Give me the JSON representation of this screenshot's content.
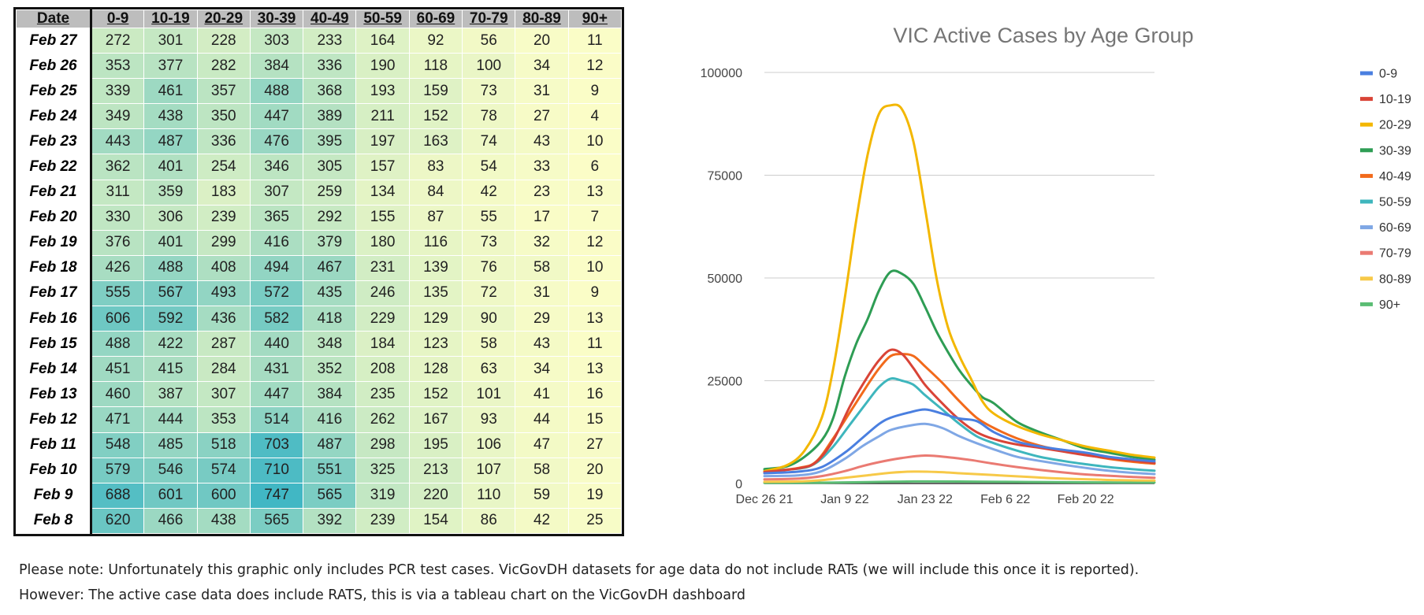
{
  "table": {
    "date_header": "Date",
    "columns": [
      "0-9",
      "10-19",
      "20-29",
      "30-39",
      "40-49",
      "50-59",
      "60-69",
      "70-79",
      "80-89",
      "90+"
    ],
    "rows": [
      {
        "date": "Feb 27",
        "values": [
          272,
          301,
          228,
          303,
          233,
          164,
          92,
          56,
          20,
          11
        ]
      },
      {
        "date": "Feb 26",
        "values": [
          353,
          377,
          282,
          384,
          336,
          190,
          118,
          100,
          34,
          12
        ]
      },
      {
        "date": "Feb 25",
        "values": [
          339,
          461,
          357,
          488,
          368,
          193,
          159,
          73,
          31,
          9
        ]
      },
      {
        "date": "Feb 24",
        "values": [
          349,
          438,
          350,
          447,
          389,
          211,
          152,
          78,
          27,
          4
        ]
      },
      {
        "date": "Feb 23",
        "values": [
          443,
          487,
          336,
          476,
          395,
          197,
          163,
          74,
          43,
          10
        ]
      },
      {
        "date": "Feb 22",
        "values": [
          362,
          401,
          254,
          346,
          305,
          157,
          83,
          54,
          33,
          6
        ]
      },
      {
        "date": "Feb 21",
        "values": [
          311,
          359,
          183,
          307,
          259,
          134,
          84,
          42,
          23,
          13
        ]
      },
      {
        "date": "Feb 20",
        "values": [
          330,
          306,
          239,
          365,
          292,
          155,
          87,
          55,
          17,
          7
        ]
      },
      {
        "date": "Feb 19",
        "values": [
          376,
          401,
          299,
          416,
          379,
          180,
          116,
          73,
          32,
          12
        ]
      },
      {
        "date": "Feb 18",
        "values": [
          426,
          488,
          408,
          494,
          467,
          231,
          139,
          76,
          58,
          10
        ]
      },
      {
        "date": "Feb 17",
        "values": [
          555,
          567,
          493,
          572,
          435,
          246,
          135,
          72,
          31,
          9
        ]
      },
      {
        "date": "Feb 16",
        "values": [
          606,
          592,
          436,
          582,
          418,
          229,
          129,
          90,
          29,
          13
        ]
      },
      {
        "date": "Feb 15",
        "values": [
          488,
          422,
          287,
          440,
          348,
          184,
          123,
          58,
          43,
          11
        ]
      },
      {
        "date": "Feb 14",
        "values": [
          451,
          415,
          284,
          431,
          352,
          208,
          128,
          63,
          34,
          13
        ]
      },
      {
        "date": "Feb 13",
        "values": [
          460,
          387,
          307,
          447,
          384,
          235,
          152,
          101,
          41,
          16
        ]
      },
      {
        "date": "Feb 12",
        "values": [
          471,
          444,
          353,
          514,
          416,
          262,
          167,
          93,
          44,
          15
        ]
      },
      {
        "date": "Feb 11",
        "values": [
          548,
          485,
          518,
          703,
          487,
          298,
          195,
          106,
          47,
          27
        ]
      },
      {
        "date": "Feb 10",
        "values": [
          579,
          546,
          574,
          710,
          551,
          325,
          213,
          107,
          58,
          20
        ]
      },
      {
        "date": "Feb 9",
        "values": [
          688,
          601,
          600,
          747,
          565,
          319,
          220,
          110,
          59,
          19
        ]
      },
      {
        "date": "Feb 8",
        "values": [
          620,
          466,
          438,
          565,
          392,
          239,
          154,
          86,
          42,
          25
        ]
      }
    ],
    "scale_colors": {
      "low": "#fbfdc7",
      "mid": "#b8e3c2",
      "high": "#41b7c4"
    }
  },
  "chart_data": {
    "type": "line",
    "title": "VIC Active Cases by Age Group",
    "xlabel": "",
    "ylabel": "",
    "x_tick_labels": [
      "Dec 26 21",
      "Jan 9 22",
      "Jan 23 22",
      "Feb 6 22",
      "Feb 20 22"
    ],
    "x_tick_days": [
      0,
      14,
      28,
      42,
      56
    ],
    "xlim": [
      0,
      68
    ],
    "ylim": [
      0,
      100000
    ],
    "y_ticks": [
      0,
      25000,
      50000,
      75000,
      100000
    ],
    "grid": true,
    "legend_position": "right",
    "series": [
      {
        "name": "0-9",
        "color": "#4a7fe0",
        "x": [
          0,
          6,
          10,
          14,
          17,
          20,
          22,
          25,
          28,
          31,
          34,
          37,
          40,
          44,
          48,
          52,
          56,
          60,
          64,
          68
        ],
        "values": [
          2500,
          2900,
          4000,
          7500,
          11000,
          14500,
          16000,
          17200,
          18000,
          17000,
          15800,
          15200,
          12500,
          10200,
          9000,
          8200,
          7500,
          6500,
          5900,
          5400
        ]
      },
      {
        "name": "10-19",
        "color": "#d94437",
        "x": [
          0,
          6,
          9,
          12,
          15,
          18,
          20,
          22,
          24,
          26,
          28,
          31,
          34,
          37,
          40,
          44,
          48,
          52,
          56,
          60,
          64,
          68
        ],
        "values": [
          2800,
          3700,
          5200,
          10500,
          19000,
          26000,
          30000,
          32500,
          31500,
          28000,
          24000,
          19500,
          15500,
          12500,
          10800,
          9500,
          8700,
          7800,
          6900,
          6200,
          5600,
          5000
        ]
      },
      {
        "name": "20-29",
        "color": "#f3b700",
        "x": [
          0,
          4,
          7,
          10,
          12,
          14,
          16,
          18,
          20,
          22,
          24,
          26,
          28,
          30,
          32,
          34,
          36,
          38,
          40,
          44,
          48,
          52,
          56,
          60,
          64,
          68
        ],
        "values": [
          3000,
          4500,
          8000,
          16000,
          28000,
          45000,
          64000,
          80000,
          90000,
          92000,
          91000,
          83000,
          67000,
          50000,
          38000,
          31000,
          25500,
          20000,
          17000,
          14000,
          12000,
          10500,
          9000,
          8000,
          7000,
          6300
        ]
      },
      {
        "name": "30-39",
        "color": "#2e9d54",
        "x": [
          0,
          4,
          7,
          10,
          12,
          14,
          16,
          18,
          20,
          22,
          24,
          26,
          28,
          30,
          32,
          34,
          36,
          38,
          40,
          44,
          48,
          52,
          56,
          60,
          64,
          68
        ],
        "values": [
          3500,
          4200,
          6500,
          10500,
          16000,
          26000,
          34000,
          40000,
          47000,
          51500,
          51000,
          48500,
          43000,
          37000,
          32000,
          27500,
          24000,
          21000,
          19500,
          15000,
          12500,
          10500,
          8500,
          7500,
          6500,
          5800
        ]
      },
      {
        "name": "40-49",
        "color": "#f26a1b",
        "x": [
          0,
          6,
          9,
          12,
          15,
          18,
          20,
          22,
          24,
          26,
          28,
          31,
          34,
          37,
          40,
          44,
          48,
          52,
          56,
          60,
          64,
          68
        ],
        "values": [
          2800,
          3800,
          5300,
          11000,
          17500,
          24000,
          28000,
          31000,
          31500,
          31000,
          28500,
          24500,
          20000,
          16000,
          13500,
          11000,
          9200,
          8000,
          7000,
          6000,
          5300,
          4800
        ]
      },
      {
        "name": "50-59",
        "color": "#3eb6bd",
        "x": [
          0,
          6,
          9,
          12,
          15,
          18,
          20,
          22,
          24,
          26,
          28,
          31,
          34,
          37,
          40,
          44,
          48,
          52,
          56,
          60,
          64,
          68
        ],
        "values": [
          3200,
          3600,
          5000,
          9000,
          14500,
          20000,
          23500,
          25500,
          25000,
          24000,
          21500,
          18000,
          14500,
          11500,
          9800,
          8000,
          6500,
          5500,
          4700,
          4000,
          3500,
          3100
        ]
      },
      {
        "name": "60-69",
        "color": "#7fa7e5",
        "x": [
          0,
          6,
          10,
          14,
          17,
          20,
          22,
          25,
          28,
          31,
          34,
          37,
          40,
          44,
          48,
          52,
          56,
          60,
          64,
          68
        ],
        "values": [
          1800,
          2000,
          3000,
          6000,
          9000,
          11500,
          13000,
          14000,
          14500,
          13500,
          11500,
          9800,
          8300,
          6500,
          5500,
          4600,
          3800,
          3100,
          2600,
          2300
        ]
      },
      {
        "name": "70-79",
        "color": "#ea7a72",
        "x": [
          0,
          6,
          10,
          14,
          17,
          20,
          24,
          28,
          32,
          36,
          40,
          44,
          48,
          52,
          56,
          60,
          64,
          68
        ],
        "values": [
          1000,
          1200,
          1800,
          3000,
          4200,
          5200,
          6200,
          6800,
          6400,
          5700,
          4800,
          4000,
          3300,
          2700,
          2200,
          1900,
          1600,
          1400
        ]
      },
      {
        "name": "80-89",
        "color": "#f7c948",
        "x": [
          0,
          6,
          10,
          14,
          18,
          22,
          26,
          30,
          34,
          38,
          42,
          46,
          50,
          54,
          58,
          62,
          68
        ],
        "values": [
          400,
          500,
          800,
          1400,
          2000,
          2600,
          2900,
          2800,
          2500,
          2200,
          1900,
          1600,
          1300,
          1100,
          950,
          800,
          700
        ]
      },
      {
        "name": "90+",
        "color": "#5bbd74",
        "x": [
          0,
          10,
          18,
          26,
          34,
          42,
          50,
          58,
          68
        ],
        "values": [
          150,
          200,
          350,
          500,
          480,
          400,
          330,
          270,
          230
        ]
      }
    ]
  },
  "notes": {
    "line1": "Please note: Unfortunately this graphic only includes PCR test cases. VicGovDH datasets for age data do not include RATs (we will include this once it is reported).",
    "line2": "However: The active case data does include RATS, this is via a tableau chart on the VicGovDH dashboard"
  }
}
